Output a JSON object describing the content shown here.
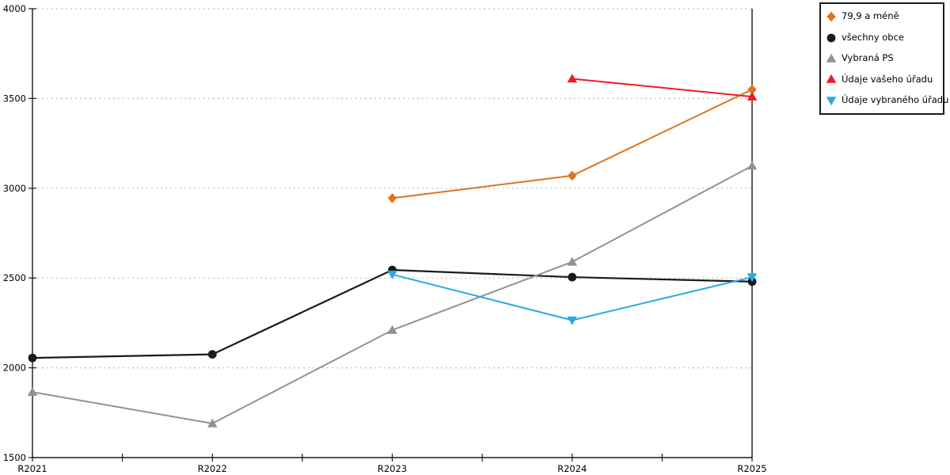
{
  "page": {
    "background": "#ffffff",
    "axis_color": "#1a1a1a",
    "grid_color": "#bdbdbd",
    "tick_label_color": "#000000"
  },
  "chart_data": {
    "type": "line",
    "title": "",
    "xlabel": "",
    "ylabel": "",
    "categories": [
      "R2021",
      "R2022",
      "R2023",
      "R2024",
      "R2025"
    ],
    "ylim": [
      1500,
      4000
    ],
    "ytick_step": 500,
    "ytick_labels": [
      "1500",
      "2000",
      "2500",
      "3000",
      "3500",
      "4000"
    ],
    "grid": "horizontal dotted gridlines at each 500, minor x-ticks at midpoints",
    "legend_position": "outside top-right, black bordered box",
    "series": [
      {
        "name": "79,9 a méně",
        "color": "#dd741f",
        "marker": "diamond",
        "line_width": 2,
        "values": [
          null,
          null,
          2945,
          3070,
          3550
        ]
      },
      {
        "name": "všechny obce",
        "color": "#1a1a1a",
        "marker": "circle",
        "line_width": 2.2,
        "values": [
          2055,
          2075,
          2545,
          2505,
          2480
        ]
      },
      {
        "name": "Vybraná PS",
        "color": "#929292",
        "marker": "triangle-up",
        "line_width": 2,
        "values": [
          1865,
          1690,
          2210,
          2590,
          3125
        ]
      },
      {
        "name": "Údaje vašeho úřadu",
        "color": "#ec1c24",
        "marker": "triangle-up",
        "line_width": 2,
        "values": [
          null,
          null,
          null,
          3610,
          3510
        ]
      },
      {
        "name": "Údaje vybraného úřadu",
        "color": "#29abe2",
        "marker": "triangle-down",
        "line_width": 2,
        "values": [
          null,
          null,
          2520,
          2265,
          2505
        ]
      }
    ]
  }
}
